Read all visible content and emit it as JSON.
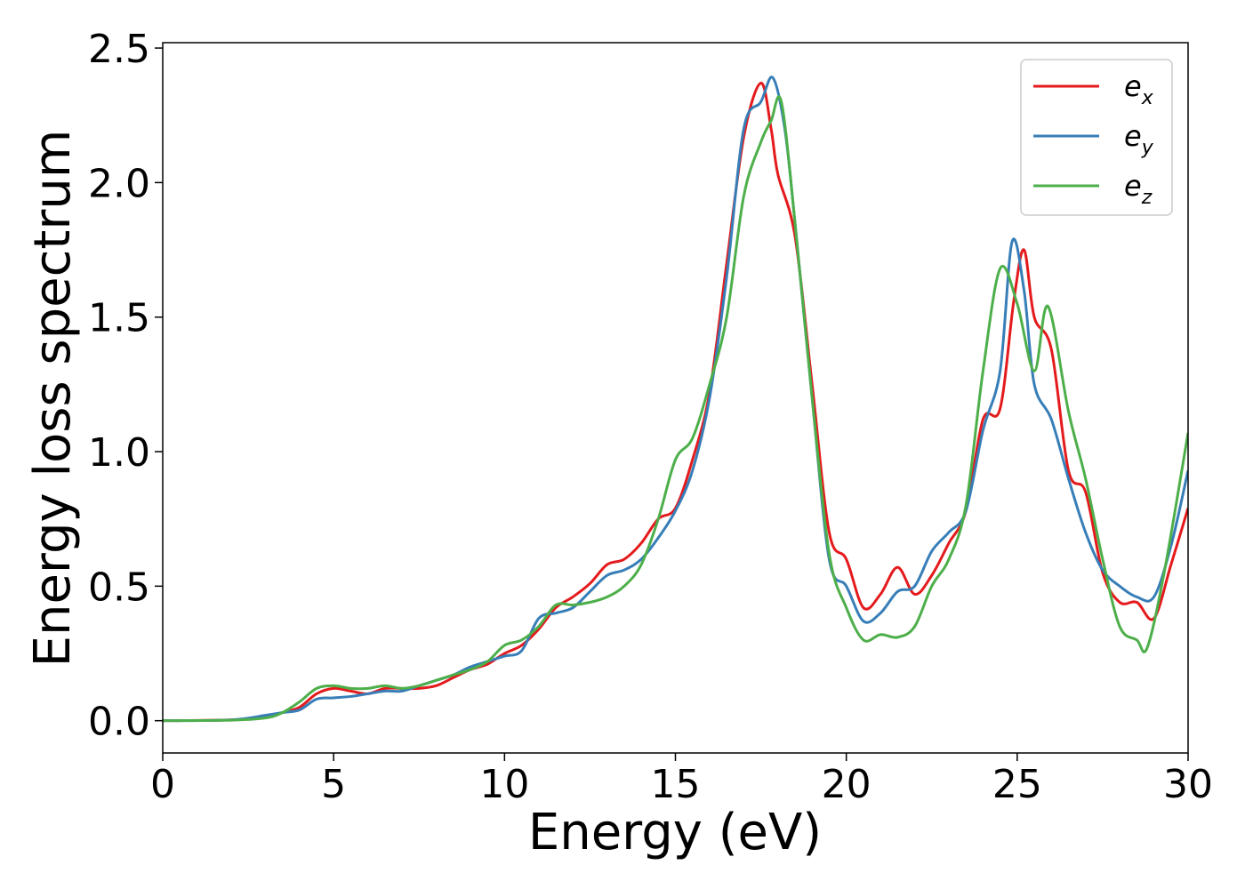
{
  "chart_data": {
    "type": "line",
    "xlabel": "Energy (eV)",
    "ylabel": "Energy loss spectrum",
    "xlim": [
      0,
      30
    ],
    "ylim": [
      -0.12,
      2.52
    ],
    "xticks": [
      "0",
      "5",
      "10",
      "15",
      "20",
      "25",
      "30"
    ],
    "yticks": [
      "0.0",
      "0.5",
      "1.0",
      "1.5",
      "2.0",
      "2.5"
    ],
    "grid": false,
    "legend_position": "top-right",
    "series": [
      {
        "name": "e",
        "subscript": "x",
        "color": "#e41a1c",
        "points": [
          [
            0,
            0
          ],
          [
            2,
            0.003
          ],
          [
            3,
            0.015
          ],
          [
            3.5,
            0.03
          ],
          [
            4,
            0.05
          ],
          [
            4.5,
            0.1
          ],
          [
            5,
            0.12
          ],
          [
            5.5,
            0.11
          ],
          [
            6,
            0.1
          ],
          [
            6.5,
            0.12
          ],
          [
            7,
            0.12
          ],
          [
            7.5,
            0.12
          ],
          [
            8,
            0.13
          ],
          [
            8.5,
            0.16
          ],
          [
            9,
            0.19
          ],
          [
            9.5,
            0.21
          ],
          [
            10,
            0.25
          ],
          [
            10.5,
            0.28
          ],
          [
            11,
            0.34
          ],
          [
            11.5,
            0.42
          ],
          [
            12,
            0.46
          ],
          [
            12.5,
            0.51
          ],
          [
            13,
            0.58
          ],
          [
            13.5,
            0.6
          ],
          [
            14,
            0.66
          ],
          [
            14.5,
            0.75
          ],
          [
            15,
            0.79
          ],
          [
            15.5,
            0.97
          ],
          [
            16,
            1.22
          ],
          [
            16.5,
            1.7
          ],
          [
            17,
            2.17
          ],
          [
            17.5,
            2.37
          ],
          [
            17.8,
            2.2
          ],
          [
            18,
            2.03
          ],
          [
            18.5,
            1.8
          ],
          [
            19,
            1.25
          ],
          [
            19.5,
            0.7
          ],
          [
            20,
            0.6
          ],
          [
            20.5,
            0.42
          ],
          [
            21,
            0.47
          ],
          [
            21.5,
            0.57
          ],
          [
            22,
            0.47
          ],
          [
            22.5,
            0.54
          ],
          [
            23,
            0.66
          ],
          [
            23.5,
            0.78
          ],
          [
            24,
            1.12
          ],
          [
            24.5,
            1.16
          ],
          [
            24.9,
            1.56
          ],
          [
            25.2,
            1.75
          ],
          [
            25.5,
            1.5
          ],
          [
            26,
            1.38
          ],
          [
            26.5,
            0.93
          ],
          [
            27,
            0.85
          ],
          [
            27.5,
            0.55
          ],
          [
            28,
            0.44
          ],
          [
            28.5,
            0.44
          ],
          [
            29,
            0.38
          ],
          [
            29.5,
            0.58
          ],
          [
            30,
            0.79
          ]
        ]
      },
      {
        "name": "e",
        "subscript": "y",
        "color": "#377eb8",
        "points": [
          [
            0,
            0
          ],
          [
            2,
            0.003
          ],
          [
            3,
            0.02
          ],
          [
            3.5,
            0.03
          ],
          [
            4,
            0.04
          ],
          [
            4.5,
            0.08
          ],
          [
            5,
            0.085
          ],
          [
            5.5,
            0.09
          ],
          [
            6,
            0.1
          ],
          [
            6.5,
            0.11
          ],
          [
            7,
            0.11
          ],
          [
            7.5,
            0.13
          ],
          [
            8,
            0.15
          ],
          [
            8.5,
            0.17
          ],
          [
            9,
            0.2
          ],
          [
            9.5,
            0.22
          ],
          [
            10,
            0.24
          ],
          [
            10.5,
            0.26
          ],
          [
            11,
            0.38
          ],
          [
            11.5,
            0.4
          ],
          [
            12,
            0.42
          ],
          [
            12.5,
            0.48
          ],
          [
            13,
            0.54
          ],
          [
            13.5,
            0.56
          ],
          [
            14,
            0.6
          ],
          [
            14.5,
            0.68
          ],
          [
            15,
            0.78
          ],
          [
            15.5,
            0.93
          ],
          [
            16,
            1.2
          ],
          [
            16.5,
            1.65
          ],
          [
            17,
            2.2
          ],
          [
            17.5,
            2.3
          ],
          [
            17.85,
            2.39
          ],
          [
            18.2,
            2.2
          ],
          [
            18.5,
            1.85
          ],
          [
            19,
            1.2
          ],
          [
            19.5,
            0.6
          ],
          [
            20,
            0.5
          ],
          [
            20.5,
            0.37
          ],
          [
            21,
            0.4
          ],
          [
            21.5,
            0.48
          ],
          [
            22,
            0.5
          ],
          [
            22.5,
            0.63
          ],
          [
            23,
            0.7
          ],
          [
            23.5,
            0.78
          ],
          [
            24,
            1.08
          ],
          [
            24.5,
            1.3
          ],
          [
            24.85,
            1.78
          ],
          [
            25.2,
            1.6
          ],
          [
            25.5,
            1.25
          ],
          [
            26,
            1.12
          ],
          [
            26.5,
            0.9
          ],
          [
            27,
            0.7
          ],
          [
            27.5,
            0.56
          ],
          [
            28,
            0.5
          ],
          [
            28.5,
            0.46
          ],
          [
            29,
            0.46
          ],
          [
            29.5,
            0.65
          ],
          [
            30,
            0.93
          ]
        ]
      },
      {
        "name": "e",
        "subscript": "z",
        "color": "#4daf4a",
        "points": [
          [
            0,
            0
          ],
          [
            2,
            0.002
          ],
          [
            3,
            0.01
          ],
          [
            3.5,
            0.03
          ],
          [
            4,
            0.07
          ],
          [
            4.5,
            0.12
          ],
          [
            5,
            0.13
          ],
          [
            5.5,
            0.12
          ],
          [
            6,
            0.12
          ],
          [
            6.5,
            0.13
          ],
          [
            7,
            0.12
          ],
          [
            7.5,
            0.13
          ],
          [
            8,
            0.15
          ],
          [
            8.5,
            0.17
          ],
          [
            9,
            0.19
          ],
          [
            9.5,
            0.22
          ],
          [
            10,
            0.28
          ],
          [
            10.5,
            0.3
          ],
          [
            11,
            0.35
          ],
          [
            11.5,
            0.43
          ],
          [
            12,
            0.43
          ],
          [
            12.5,
            0.44
          ],
          [
            13,
            0.46
          ],
          [
            13.5,
            0.5
          ],
          [
            14,
            0.58
          ],
          [
            14.5,
            0.75
          ],
          [
            15,
            0.97
          ],
          [
            15.5,
            1.05
          ],
          [
            16,
            1.25
          ],
          [
            16.5,
            1.5
          ],
          [
            17,
            1.95
          ],
          [
            17.5,
            2.15
          ],
          [
            17.8,
            2.23
          ],
          [
            18.1,
            2.3
          ],
          [
            18.5,
            1.85
          ],
          [
            19,
            1.2
          ],
          [
            19.5,
            0.62
          ],
          [
            20,
            0.42
          ],
          [
            20.5,
            0.3
          ],
          [
            21,
            0.32
          ],
          [
            21.5,
            0.31
          ],
          [
            22,
            0.35
          ],
          [
            22.5,
            0.5
          ],
          [
            23,
            0.6
          ],
          [
            23.5,
            0.8
          ],
          [
            24,
            1.3
          ],
          [
            24.5,
            1.68
          ],
          [
            25,
            1.55
          ],
          [
            25.5,
            1.3
          ],
          [
            25.9,
            1.54
          ],
          [
            26.5,
            1.15
          ],
          [
            27,
            0.9
          ],
          [
            27.5,
            0.6
          ],
          [
            28,
            0.35
          ],
          [
            28.5,
            0.3
          ],
          [
            28.8,
            0.27
          ],
          [
            29.3,
            0.55
          ],
          [
            30,
            1.07
          ]
        ]
      }
    ]
  }
}
